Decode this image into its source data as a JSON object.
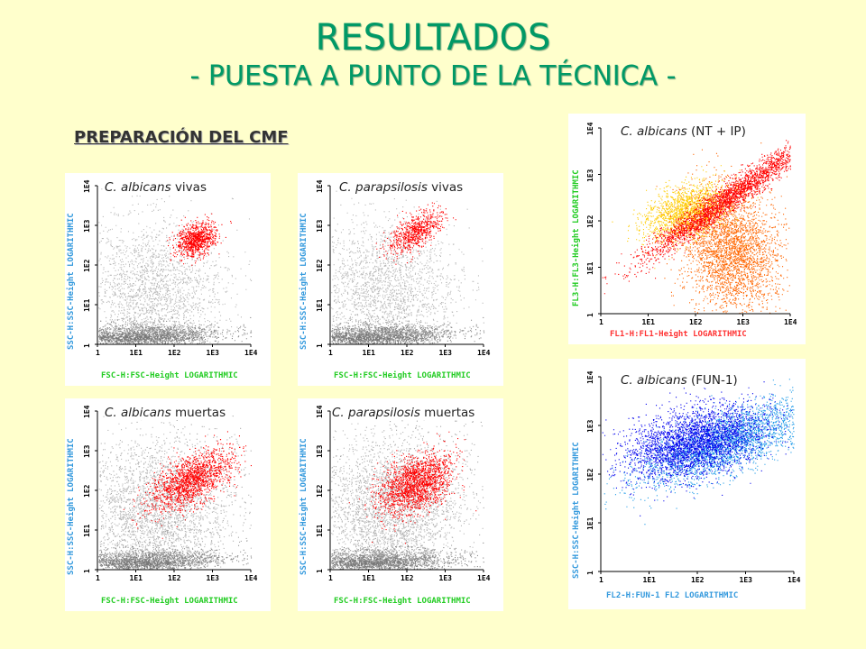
{
  "title": "RESULTADOS",
  "subtitle_line": "- PUESTA A PUNTO DE LA TÉCNICA -",
  "section_heading": "PREPARACIÓN DEL CMF",
  "colors": {
    "background": "#ffffcc",
    "title": "#009966",
    "gate_red": "#ff0000",
    "gray_events": "#888888",
    "orange_events": "#ff6600",
    "yellow_events": "#ffcc00",
    "blue_dark": "#0000ee",
    "blue_light": "#1e9be8",
    "axis_green": "#22cc22",
    "axis_blue": "#3399dd",
    "axis_red": "#ff3333"
  },
  "ticks": [
    "1",
    "1E1",
    "1E2",
    "1E3",
    "1E4"
  ],
  "panels": [
    {
      "id": "p1",
      "species": "C. albicans",
      "state": "vivas",
      "x_axis": "FSC-H:FSC-Height LOGARITHMIC",
      "y_axis": "SSC-H:SSC-Height LOGARITHMIC"
    },
    {
      "id": "p2",
      "species": "C. parapsilosis",
      "state": "vivas",
      "x_axis": "FSC-H:FSC-Height LOGARITHMIC",
      "y_axis": "SSC-H:SSC-Height LOGARITHMIC"
    },
    {
      "id": "p3",
      "species": "C. albicans",
      "state": "muertas",
      "x_axis": "FSC-H:FSC-Height LOGARITHMIC",
      "y_axis": "SSC-H:SSC-Height LOGARITHMIC"
    },
    {
      "id": "p4",
      "species": "C. parapsilosis",
      "state": "muertas",
      "x_axis": "FSC-H:FSC-Height LOGARITHMIC",
      "y_axis": "SSC-H:SSC-Height LOGARITHMIC"
    },
    {
      "id": "p5",
      "species": "C. albicans",
      "state": "(NT + IP)",
      "x_axis": "FL1-H:FL1-Height LOGARITHMIC",
      "y_axis": "FL3-H:FL3-Height LOGARITHMIC"
    },
    {
      "id": "p6",
      "species": "C. albicans",
      "state": "(FUN-1)",
      "x_axis": "FL2-H:FUN-1 FL2 LOGARITHMIC",
      "y_axis": "SSC-H:SSC-Height LOGARITHMIC"
    }
  ]
}
